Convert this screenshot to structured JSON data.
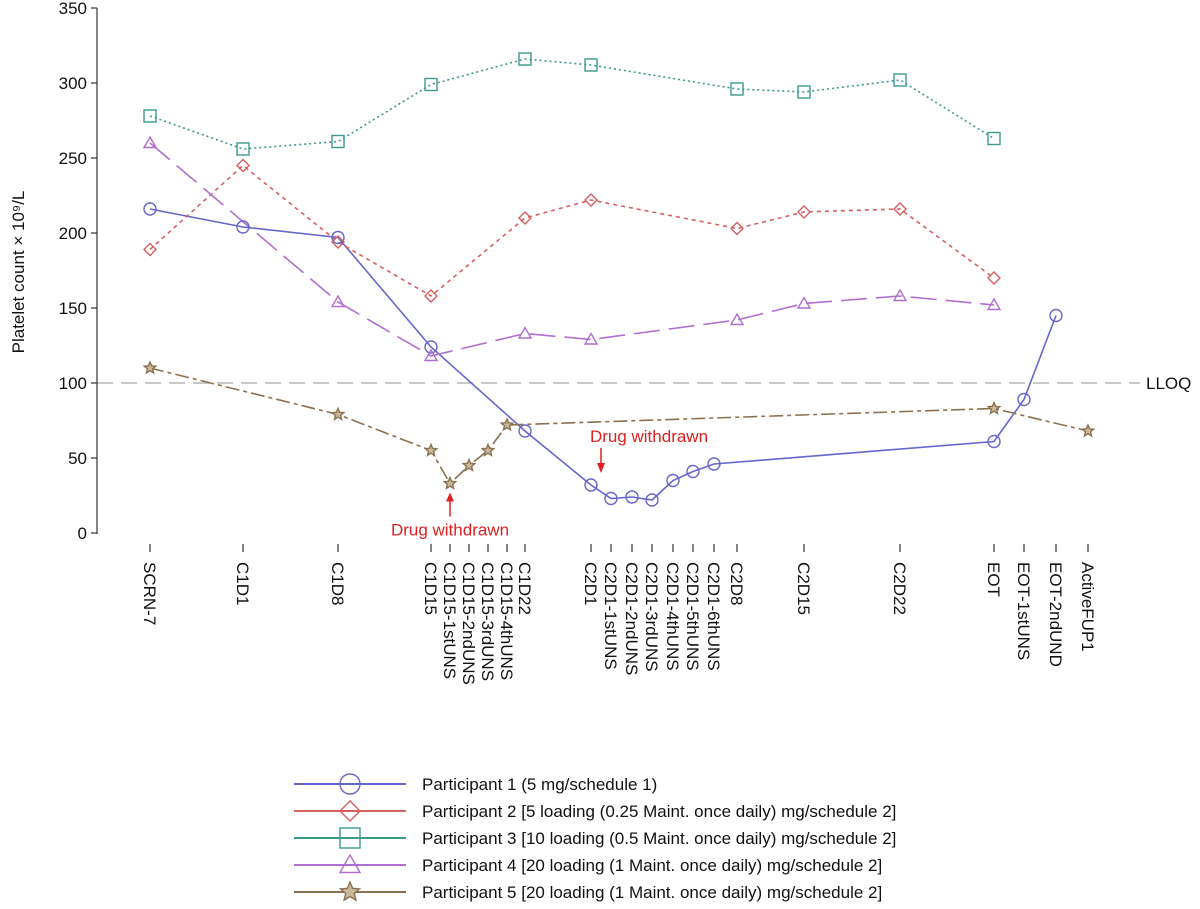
{
  "chart_data": {
    "type": "line",
    "ylabel": "Platelet count × 10⁹/L",
    "ylim": [
      0,
      350
    ],
    "yticks": [
      0,
      50,
      100,
      150,
      200,
      250,
      300,
      350
    ],
    "categories": [
      "SCRN-7",
      "C1D1",
      "C1D8",
      "C1D15",
      "C1D15-1stUNS",
      "C1D15-2ndUNS",
      "C1D15-3rdUNS",
      "C1D15-4thUNS",
      "C1D22",
      "C2D1",
      "C2D1-1stUNS",
      "C2D1-2ndUNS",
      "C2D1-3rdUNS",
      "C2D1-4thUNS",
      "C2D1-5thUNS",
      "C2D1-6thUNS",
      "C2D8",
      "C2D15",
      "C2D22",
      "EOT",
      "EOT-1stUNS",
      "EOT-2ndUND",
      "ActiveFUP1"
    ],
    "reference_line": {
      "value": 100,
      "label": "LLOQ"
    },
    "series": [
      {
        "name": "Participant 1 (5 mg/schedule 1)",
        "color": "#6666cc",
        "marker": "circle",
        "dash": "solid",
        "points": [
          [
            "SCRN-7",
            216
          ],
          [
            "C1D1",
            204
          ],
          [
            "C1D8",
            197
          ],
          [
            "C1D15",
            124
          ],
          [
            "C1D22",
            68
          ],
          [
            "C2D1",
            32
          ],
          [
            "C2D1-1stUNS",
            23
          ],
          [
            "C2D1-2ndUNS",
            24
          ],
          [
            "C2D1-3rdUNS",
            22
          ],
          [
            "C2D1-4thUNS",
            35
          ],
          [
            "C2D1-5thUNS",
            41
          ],
          [
            "C2D1-6thUNS",
            46
          ],
          [
            "EOT",
            61
          ],
          [
            "EOT-1stUNS",
            89
          ],
          [
            "EOT-2ndUND",
            145
          ]
        ]
      },
      {
        "name": "Participant 2 [5 loading (0.25 Maint. once daily) mg/schedule 2]",
        "color": "#d65f5f",
        "marker": "diamond",
        "dash": "short",
        "points": [
          [
            "SCRN-7",
            189
          ],
          [
            "C1D1",
            245
          ],
          [
            "C1D8",
            194
          ],
          [
            "C1D15",
            158
          ],
          [
            "C1D22",
            210
          ],
          [
            "C2D1",
            222
          ],
          [
            "C2D8",
            203
          ],
          [
            "C2D15",
            214
          ],
          [
            "C2D22",
            216
          ],
          [
            "EOT",
            170
          ]
        ]
      },
      {
        "name": "Participant 3 [10 loading (0.5 Maint. once daily) mg/schedule 2]",
        "color": "#3a9a8e",
        "marker": "square",
        "dash": "dotted",
        "points": [
          [
            "SCRN-7",
            278
          ],
          [
            "C1D1",
            256
          ],
          [
            "C1D8",
            261
          ],
          [
            "C1D15",
            299
          ],
          [
            "C1D22",
            316
          ],
          [
            "C2D1",
            312
          ],
          [
            "C2D8",
            296
          ],
          [
            "C2D15",
            294
          ],
          [
            "C2D22",
            302
          ],
          [
            "EOT",
            263
          ]
        ]
      },
      {
        "name": "Participant 4 [20 loading (1 Maint. once daily) mg/schedule 2]",
        "color": "#b06fd0",
        "marker": "triangle",
        "dash": "long",
        "points": [
          [
            "SCRN-7",
            260
          ],
          [
            "C1D8",
            154
          ],
          [
            "C1D15",
            118
          ],
          [
            "C1D22",
            133
          ],
          [
            "C2D1",
            129
          ],
          [
            "C2D8",
            142
          ],
          [
            "C2D15",
            153
          ],
          [
            "C2D22",
            158
          ],
          [
            "EOT",
            152
          ]
        ]
      },
      {
        "name": "Participant 5 [20 loading (1 Maint. once daily) mg/schedule 2]",
        "color": "#8c7150",
        "marker": "star",
        "dash": "longshort",
        "points": [
          [
            "SCRN-7",
            110
          ],
          [
            "C1D8",
            79
          ],
          [
            "C1D15",
            55
          ],
          [
            "C1D15-1stUNS",
            33
          ],
          [
            "C1D15-2ndUNS",
            45
          ],
          [
            "C1D15-3rdUNS",
            55
          ],
          [
            "C1D15-4thUNS",
            72
          ],
          [
            "EOT",
            83
          ],
          [
            "ActiveFUP1",
            68
          ]
        ]
      }
    ],
    "annotations": [
      {
        "text": "Drug withdrawn",
        "category": "C1D15-1stUNS",
        "value": 33,
        "placement": "below",
        "color": "#e02020"
      },
      {
        "text": "Drug withdrawn",
        "category": "C2D1",
        "value": 32,
        "placement": "above",
        "color": "#e02020"
      }
    ]
  }
}
